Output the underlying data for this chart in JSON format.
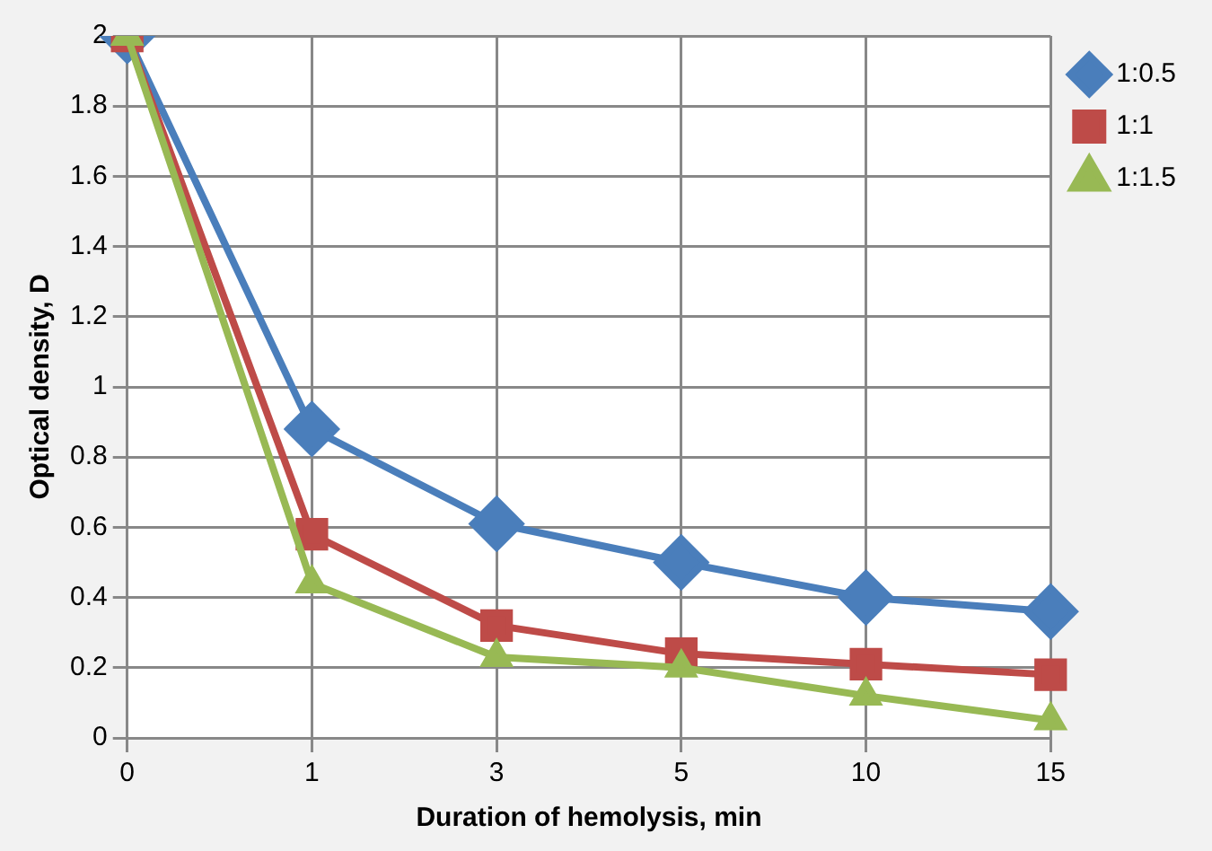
{
  "chart_data": {
    "type": "line",
    "xlabel": "Duration of hemolysis, min",
    "ylabel": "Optical density, D",
    "categories": [
      "0",
      "1",
      "3",
      "5",
      "10",
      "15"
    ],
    "series": [
      {
        "name": "1:0.5",
        "color": "#4a7ebb",
        "marker": "diamond",
        "values": [
          2,
          0.88,
          0.61,
          0.5,
          0.4,
          0.36
        ]
      },
      {
        "name": "1:1",
        "color": "#be4b48",
        "marker": "square",
        "values": [
          2,
          0.58,
          0.32,
          0.24,
          0.21,
          0.18
        ]
      },
      {
        "name": "1:1.5",
        "color": "#98b954",
        "marker": "triangle",
        "values": [
          2,
          0.44,
          0.23,
          0.2,
          0.12,
          0.05
        ]
      }
    ],
    "ylim": [
      0,
      2
    ],
    "yticks": [
      0,
      0.2,
      0.4,
      0.6,
      0.8,
      1,
      1.2,
      1.4,
      1.6,
      1.8,
      2
    ],
    "grid": true,
    "legend": "top right",
    "line_style": "solid"
  }
}
